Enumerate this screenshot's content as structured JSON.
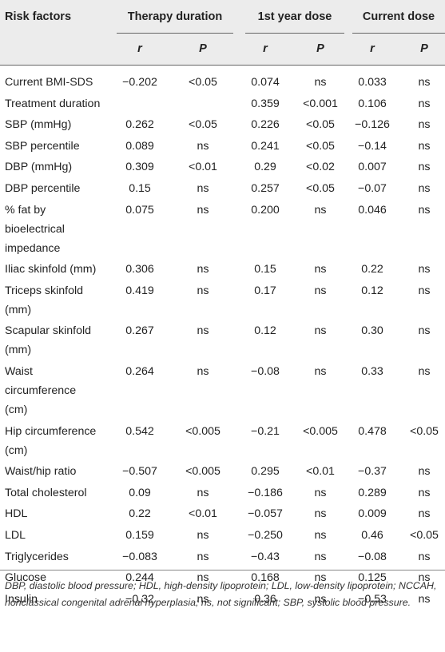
{
  "headers": {
    "risk": "Risk factors",
    "groups": [
      "Therapy duration",
      "1st year dose",
      "Current dose"
    ],
    "sub": [
      "r",
      "P",
      "r",
      "P",
      "r",
      "P"
    ]
  },
  "rows": [
    {
      "label": [
        "Current BMI-SDS"
      ],
      "values": [
        "−0.202",
        "<0.05",
        "0.074",
        "ns",
        "0.033",
        "ns"
      ]
    },
    {
      "label": [
        "Treatment duration"
      ],
      "values": [
        "",
        "",
        "0.359",
        "<0.001",
        "0.106",
        "ns"
      ]
    },
    {
      "label": [
        "SBP (mmHg)"
      ],
      "values": [
        "0.262",
        "<0.05",
        "0.226",
        "<0.05",
        "−0.126",
        "ns"
      ]
    },
    {
      "label": [
        "SBP percentile"
      ],
      "values": [
        "0.089",
        "ns",
        "0.241",
        "<0.05",
        "−0.14",
        "ns"
      ]
    },
    {
      "label": [
        "DBP (mmHg)"
      ],
      "values": [
        "0.309",
        "<0.01",
        "0.29",
        "<0.02",
        "0.007",
        "ns"
      ]
    },
    {
      "label": [
        "DBP percentile"
      ],
      "values": [
        "0.15",
        "ns",
        "0.257",
        "<0.05",
        "−0.07",
        "ns"
      ]
    },
    {
      "label": [
        "% fat by",
        "bioelectrical",
        "impedance"
      ],
      "values": [
        "0.075",
        "ns",
        "0.200",
        "ns",
        "0.046",
        "ns"
      ]
    },
    {
      "label": [
        "Iliac skinfold (mm)"
      ],
      "values": [
        "0.306",
        "ns",
        "0.15",
        "ns",
        "0.22",
        "ns"
      ]
    },
    {
      "label": [
        "Triceps skinfold",
        "(mm)"
      ],
      "values": [
        "0.419",
        "ns",
        "0.17",
        "ns",
        "0.12",
        "ns"
      ]
    },
    {
      "label": [
        "Scapular skinfold",
        "(mm)"
      ],
      "values": [
        "0.267",
        "ns",
        "0.12",
        "ns",
        "0.30",
        "ns"
      ]
    },
    {
      "label": [
        "Waist",
        "circumference",
        "(cm)"
      ],
      "values": [
        "0.264",
        "ns",
        "−0.08",
        "ns",
        "0.33",
        "ns"
      ]
    },
    {
      "label": [
        "Hip circumference",
        "(cm)"
      ],
      "values": [
        "0.542",
        "<0.005",
        "−0.21",
        "<0.005",
        "0.478",
        "<0.05"
      ]
    },
    {
      "label": [
        "Waist/hip ratio"
      ],
      "values": [
        "−0.507",
        "<0.005",
        "0.295",
        "<0.01",
        "−0.37",
        "ns"
      ]
    },
    {
      "label": [
        "Total cholesterol"
      ],
      "values": [
        "0.09",
        "ns",
        "−0.186",
        "ns",
        "0.289",
        "ns"
      ]
    },
    {
      "label": [
        "HDL"
      ],
      "values": [
        "0.22",
        "<0.01",
        "−0.057",
        "ns",
        "0.009",
        "ns"
      ]
    },
    {
      "label": [
        "LDL"
      ],
      "values": [
        "0.159",
        "ns",
        "−0.250",
        "ns",
        "0.46",
        "<0.05"
      ]
    },
    {
      "label": [
        "Triglycerides"
      ],
      "values": [
        "−0.083",
        "ns",
        "−0.43",
        "ns",
        "−0.08",
        "ns"
      ]
    },
    {
      "label": [
        "Glucose"
      ],
      "values": [
        "0.244",
        "ns",
        "0.168",
        "ns",
        "0.125",
        "ns"
      ]
    },
    {
      "label": [
        "Insulin"
      ],
      "values": [
        "−0.32",
        "ns",
        "0.36",
        "ns",
        "−0.53",
        "ns"
      ]
    }
  ],
  "footnote": "DBP, diastolic blood pressure; HDL, high-density lipoprotein; LDL, low-density lipoprotein; NCCAH, nonclassical congenital adrenal hyperplasia; ns, not significant; SBP, systolic blood pressure."
}
